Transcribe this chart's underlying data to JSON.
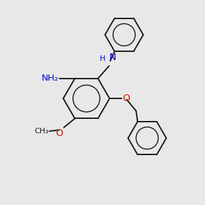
{
  "bg_color": "#e8e8e8",
  "bond_color": "#1a1a1a",
  "n_color": "#0000cd",
  "o_color": "#cc2200",
  "font_size": 9,
  "fig_size": [
    3.0,
    3.0
  ],
  "dpi": 100,
  "lw": 1.4,
  "xlim": [
    0,
    10
  ],
  "ylim": [
    0,
    10
  ]
}
